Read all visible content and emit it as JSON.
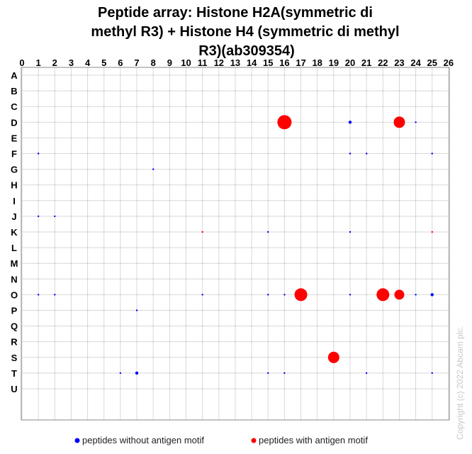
{
  "chart_data": {
    "type": "scatter",
    "title_lines": [
      "Peptide array:  Histone H2A(symmetric di",
      "methyl R3) + Histone H4 (symmetric di methyl",
      "R3)(ab309354)"
    ],
    "x_ticks": [
      "0",
      "1",
      "2",
      "3",
      "4",
      "5",
      "6",
      "7",
      "8",
      "9",
      "10",
      "11",
      "12",
      "13",
      "14",
      "15",
      "16",
      "17",
      "18",
      "19",
      "20",
      "21",
      "22",
      "23",
      "24",
      "25",
      "26"
    ],
    "y_ticks": [
      "A",
      "B",
      "C",
      "D",
      "E",
      "F",
      "G",
      "H",
      "I",
      "J",
      "K",
      "L",
      "M",
      "N",
      "O",
      "P",
      "Q",
      "R",
      "S",
      "T",
      "U"
    ],
    "xlim": [
      0,
      26
    ],
    "grid": true,
    "legend_position": "bottom",
    "series": [
      {
        "name": "peptides without antigen motif",
        "color": "#0000ff",
        "points": [
          {
            "x": 20,
            "y": "D",
            "size": 2
          },
          {
            "x": 24,
            "y": "D",
            "size": 1
          },
          {
            "x": 1,
            "y": "F",
            "size": 1
          },
          {
            "x": 20,
            "y": "F",
            "size": 1
          },
          {
            "x": 21,
            "y": "F",
            "size": 1
          },
          {
            "x": 25,
            "y": "F",
            "size": 1
          },
          {
            "x": 8,
            "y": "G",
            "size": 1
          },
          {
            "x": 1,
            "y": "J",
            "size": 1
          },
          {
            "x": 2,
            "y": "J",
            "size": 1
          },
          {
            "x": 15,
            "y": "K",
            "size": 1
          },
          {
            "x": 20,
            "y": "K",
            "size": 1
          },
          {
            "x": 1,
            "y": "O",
            "size": 1
          },
          {
            "x": 2,
            "y": "O",
            "size": 1
          },
          {
            "x": 11,
            "y": "O",
            "size": 1
          },
          {
            "x": 15,
            "y": "O",
            "size": 1
          },
          {
            "x": 16,
            "y": "O",
            "size": 1
          },
          {
            "x": 20,
            "y": "O",
            "size": 1
          },
          {
            "x": 24,
            "y": "O",
            "size": 1
          },
          {
            "x": 25,
            "y": "O",
            "size": 2
          },
          {
            "x": 7,
            "y": "P",
            "size": 1
          },
          {
            "x": 6,
            "y": "T",
            "size": 1
          },
          {
            "x": 7,
            "y": "T",
            "size": 2
          },
          {
            "x": 15,
            "y": "T",
            "size": 1
          },
          {
            "x": 16,
            "y": "T",
            "size": 1
          },
          {
            "x": 21,
            "y": "T",
            "size": 1
          },
          {
            "x": 25,
            "y": "T",
            "size": 1
          }
        ]
      },
      {
        "name": "peptides with antigen motif",
        "color": "#ff0000",
        "points": [
          {
            "x": 16,
            "y": "D",
            "size": 10
          },
          {
            "x": 23,
            "y": "D",
            "size": 8
          },
          {
            "x": 11,
            "y": "K",
            "size": 1
          },
          {
            "x": 25,
            "y": "K",
            "size": 1
          },
          {
            "x": 17,
            "y": "O",
            "size": 9
          },
          {
            "x": 22,
            "y": "O",
            "size": 9
          },
          {
            "x": 23,
            "y": "O",
            "size": 7
          },
          {
            "x": 19,
            "y": "S",
            "size": 8
          }
        ]
      }
    ],
    "copyright": "Copyright (c) 2022 Abcam plc."
  }
}
